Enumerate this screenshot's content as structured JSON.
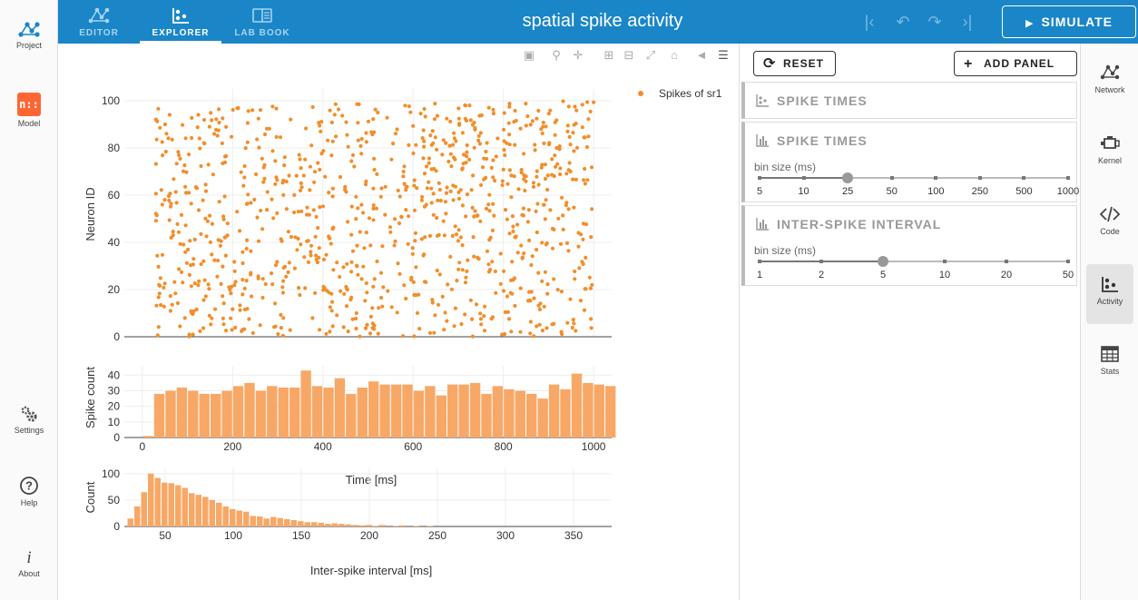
{
  "topbar": {
    "tabs": [
      {
        "label": "EDITOR",
        "icon": "editor-network-icon"
      },
      {
        "label": "EXPLORER",
        "icon": "explorer-scatter-icon"
      },
      {
        "label": "LAB BOOK",
        "icon": "lab-book-icon"
      }
    ],
    "active_tab": "EXPLORER",
    "title": "spatial spike activity",
    "history": [
      "first-icon",
      "undo-icon",
      "redo-icon",
      "last-icon"
    ],
    "simulate_label": "SIMULATE"
  },
  "leftnav": {
    "items": [
      {
        "label": "Project",
        "icon": "project-network-icon"
      },
      {
        "label": "Model",
        "icon": "nest-model-icon",
        "logo_text": "n::"
      },
      {
        "label": "Settings",
        "icon": "gears-icon"
      },
      {
        "label": "Help",
        "icon": "help-icon"
      },
      {
        "label": "About",
        "icon": "info-icon"
      }
    ]
  },
  "rightnav": {
    "items": [
      {
        "label": "Network",
        "icon": "network-icon"
      },
      {
        "label": "Kernel",
        "icon": "engine-icon"
      },
      {
        "label": "Code",
        "icon": "code-icon"
      },
      {
        "label": "Activity",
        "icon": "scatter-icon",
        "active": true
      },
      {
        "label": "Stats",
        "icon": "table-icon"
      }
    ]
  },
  "panel": {
    "reset_label": "RESET",
    "add_panel_label": "ADD PANEL",
    "cards": [
      {
        "title": "SPIKE TIMES",
        "icon": "scatter-icon"
      },
      {
        "title": "SPIKE TIMES",
        "icon": "bar-icon",
        "slider_label": "bin size (ms)",
        "ticks": [
          "5",
          "10",
          "25",
          "50",
          "100",
          "250",
          "500",
          "1000"
        ],
        "selected_index": 2
      },
      {
        "title": "INTER-SPIKE INTERVAL",
        "icon": "bar-icon",
        "slider_label": "bin size (ms)",
        "ticks": [
          "1",
          "2",
          "5",
          "10",
          "20",
          "50"
        ],
        "selected_index": 2
      }
    ]
  },
  "chart_data": [
    {
      "type": "scatter",
      "title": "",
      "series": [
        {
          "name": "Spikes of sr1",
          "color": "#f28e2b",
          "n_points": 1000,
          "x_range": [
            30,
            1000
          ],
          "y_range": [
            0,
            100
          ],
          "distribution": "uniform random"
        }
      ],
      "xlabel": "",
      "ylabel": "Neuron ID",
      "xlim": [
        -40,
        1040
      ],
      "ylim": [
        0,
        105
      ],
      "yticks": [
        0,
        20,
        40,
        60,
        80,
        100
      ],
      "grid": true,
      "legend": "top-right"
    },
    {
      "type": "bar",
      "xlabel": "Time [ms]",
      "ylabel": "Spike count",
      "bin_size": 25,
      "x_start": 0,
      "values": [
        1,
        28,
        30,
        32,
        30,
        28,
        28,
        30,
        33,
        35,
        30,
        33,
        32,
        32,
        43,
        33,
        32,
        38,
        28,
        32,
        36,
        34,
        34,
        34,
        30,
        33,
        27,
        34,
        34,
        35,
        28,
        33,
        31,
        30,
        28,
        25,
        34,
        31,
        41,
        35,
        34,
        33,
        0
      ],
      "xticks": [
        0,
        200,
        400,
        600,
        800,
        1000
      ],
      "yticks": [
        0,
        10,
        20,
        30,
        40
      ],
      "xlim": [
        -40,
        1040
      ],
      "ylim": [
        0,
        46
      ],
      "color": "#f8a866",
      "grid": true
    },
    {
      "type": "bar",
      "xlabel": "Inter-spike interval [ms]",
      "ylabel": "Count",
      "bin_size": 5,
      "x_start": 22,
      "values": [
        15,
        38,
        65,
        100,
        92,
        83,
        82,
        78,
        73,
        63,
        60,
        56,
        50,
        45,
        38,
        33,
        30,
        28,
        20,
        19,
        15,
        18,
        16,
        14,
        12,
        10,
        8,
        8,
        7,
        5,
        6,
        5,
        4,
        3,
        2,
        3,
        1,
        3,
        0,
        1,
        2,
        0,
        1,
        0,
        1
      ],
      "xticks": [
        50,
        100,
        150,
        200,
        250,
        300,
        350
      ],
      "yticks": [
        0,
        50,
        100
      ],
      "xlim": [
        20,
        378
      ],
      "ylim": [
        0,
        110
      ],
      "color": "#f8a866",
      "grid": true
    }
  ]
}
